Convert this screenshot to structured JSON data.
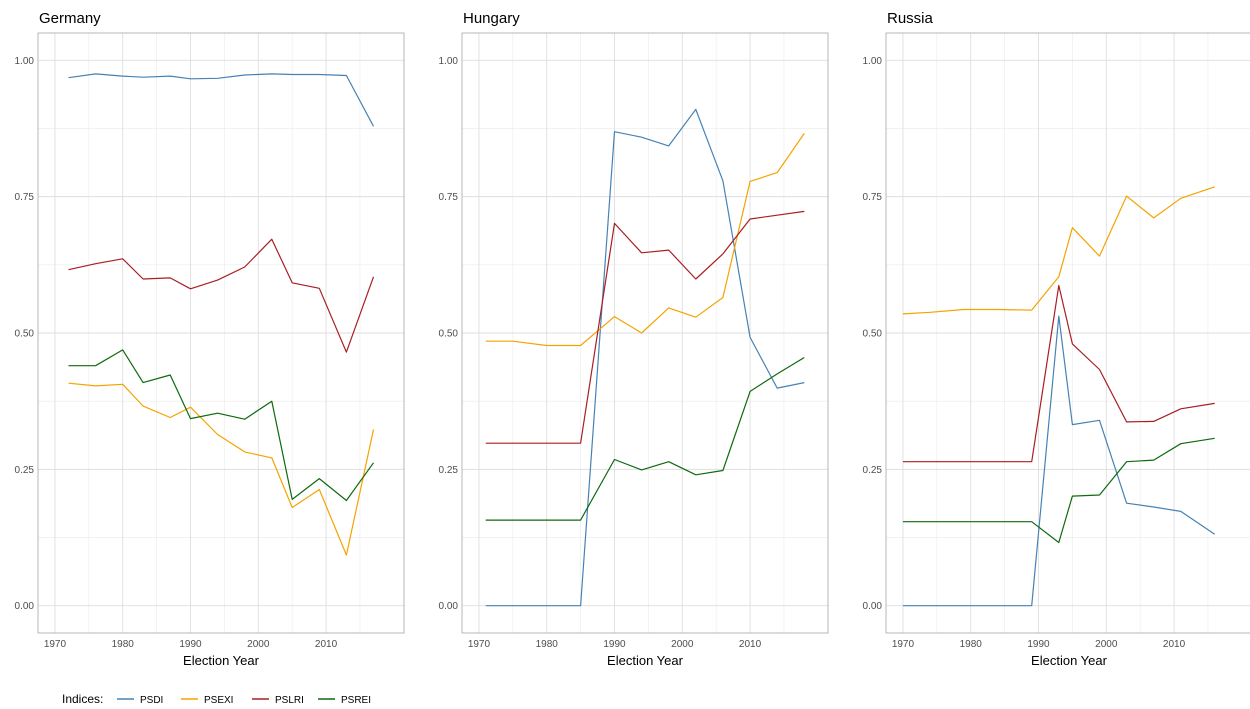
{
  "chart_data": {
    "type": "line",
    "facets": [
      "Germany",
      "Hungary",
      "Russia"
    ],
    "xlabel": "Election Year",
    "ylabel": "",
    "xlim": [
      1967.5,
      2021.5
    ],
    "ylim": [
      -0.05,
      1.05
    ],
    "x_ticks": [
      "1970",
      "1980",
      "1990",
      "2000",
      "2010"
    ],
    "y_ticks": [
      "0.00",
      "0.25",
      "0.50",
      "0.75",
      "1.00"
    ],
    "grid": true,
    "legend": {
      "title": "Indices:",
      "position": "bottom-left",
      "entries": [
        "PSDI",
        "PSEXI",
        "PSLRI",
        "PSREI"
      ]
    },
    "colors": {
      "PSDI": "#4682b4",
      "PSEXI": "#f5a300",
      "PSLRI": "#a81e24",
      "PSREI": "#0d6a0d"
    },
    "panels": [
      {
        "title": "Germany",
        "x": [
          1972,
          1976,
          1980,
          1983,
          1987,
          1990,
          1994,
          1998,
          2002,
          2005,
          2009,
          2013,
          2017
        ],
        "series": [
          {
            "name": "PSDI",
            "values": [
              0.968,
              0.975,
              0.971,
              0.969,
              0.971,
              0.966,
              0.967,
              0.973,
              0.975,
              0.974,
              0.974,
              0.972,
              0.879
            ]
          },
          {
            "name": "PSEXI",
            "values": [
              0.408,
              0.403,
              0.406,
              0.366,
              0.345,
              0.364,
              0.314,
              0.282,
              0.271,
              0.18,
              0.213,
              0.093,
              0.323
            ]
          },
          {
            "name": "PSLRI",
            "values": [
              0.616,
              0.627,
              0.636,
              0.599,
              0.601,
              0.581,
              0.597,
              0.621,
              0.672,
              0.592,
              0.582,
              0.465,
              0.603
            ]
          },
          {
            "name": "PSREI",
            "values": [
              0.44,
              0.44,
              0.469,
              0.409,
              0.423,
              0.343,
              0.353,
              0.342,
              0.375,
              0.195,
              0.233,
              0.193,
              0.262
            ]
          }
        ]
      },
      {
        "title": "Hungary",
        "x": [
          1971,
          1975,
          1980,
          1985,
          1990,
          1994,
          1998,
          2002,
          2006,
          2010,
          2014,
          2018
        ],
        "series": [
          {
            "name": "PSDI",
            "values": [
              0.0,
              0.0,
              0.0,
              0.0,
              0.869,
              0.859,
              0.843,
              0.91,
              0.779,
              0.492,
              0.399,
              0.409
            ]
          },
          {
            "name": "PSEXI",
            "values": [
              0.485,
              0.485,
              0.477,
              0.477,
              0.53,
              0.5,
              0.546,
              0.529,
              0.565,
              0.778,
              0.794,
              0.866
            ]
          },
          {
            "name": "PSLRI",
            "values": [
              0.298,
              0.298,
              0.298,
              0.298,
              0.701,
              0.647,
              0.652,
              0.599,
              0.645,
              0.709,
              0.716,
              0.723
            ]
          },
          {
            "name": "PSREI",
            "values": [
              0.157,
              0.157,
              0.157,
              0.157,
              0.268,
              0.249,
              0.264,
              0.24,
              0.248,
              0.393,
              0.425,
              0.455
            ]
          }
        ]
      },
      {
        "title": "Russia",
        "x": [
          1970,
          1974,
          1979,
          1984,
          1989,
          1993,
          1995,
          1999,
          2003,
          2007,
          2011,
          2016
        ],
        "series": [
          {
            "name": "PSDI",
            "values": [
              0.0,
              0.0,
              0.0,
              0.0,
              0.0,
              0.531,
              0.332,
              0.34,
              0.188,
              0.181,
              0.173,
              0.131
            ]
          },
          {
            "name": "PSEXI",
            "values": [
              0.535,
              0.538,
              0.543,
              0.543,
              0.542,
              0.603,
              0.693,
              0.641,
              0.751,
              0.711,
              0.747,
              0.768
            ]
          },
          {
            "name": "PSLRI",
            "values": [
              0.264,
              0.264,
              0.264,
              0.264,
              0.264,
              0.587,
              0.48,
              0.433,
              0.337,
              0.338,
              0.361,
              0.371
            ]
          },
          {
            "name": "PSREI",
            "values": [
              0.154,
              0.154,
              0.154,
              0.154,
              0.154,
              0.116,
              0.201,
              0.203,
              0.264,
              0.267,
              0.297,
              0.307
            ]
          }
        ]
      }
    ]
  }
}
